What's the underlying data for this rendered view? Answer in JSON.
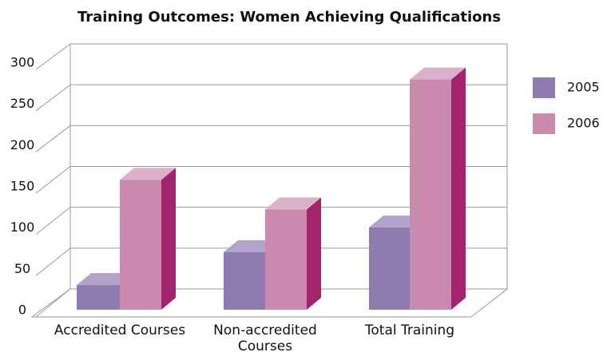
{
  "chart_data": {
    "type": "bar3d",
    "title": "Training Outcomes: Women Achieving Qualifications",
    "categories": [
      "Accredited Courses",
      "Non-accredited Courses",
      "Total Training"
    ],
    "series": [
      {
        "name": "2005",
        "color": "#8f7bb0",
        "values": [
          30,
          70,
          100
        ]
      },
      {
        "name": "2006",
        "color": "#c98aae",
        "values": [
          158,
          122,
          280
        ]
      }
    ],
    "ylim": [
      0,
      300
    ],
    "yticks": [
      0,
      50,
      100,
      150,
      200,
      250,
      300
    ],
    "grid": true,
    "legend": "right"
  }
}
